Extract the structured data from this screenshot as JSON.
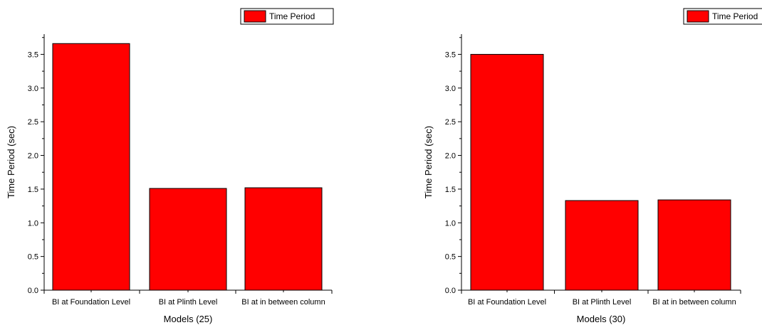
{
  "chart_data": [
    {
      "type": "bar",
      "categories": [
        "BI at Foundation Level",
        "BI at Plinth Level",
        "BI at in between column"
      ],
      "series": [
        {
          "name": "Time Period",
          "values": [
            3.66,
            1.51,
            1.52
          ]
        }
      ],
      "title": "",
      "xlabel": "Models (25)",
      "ylabel": "Time Period (sec)",
      "ylim": [
        0,
        3.8
      ],
      "yticks": [
        "0.0",
        "0.5",
        "1.0",
        "1.5",
        "2.0",
        "2.5",
        "3.0",
        "3.5"
      ],
      "legend_label": "Time Period",
      "legend_position": "top-right",
      "bar_color": "#ff0000",
      "grid": false
    },
    {
      "type": "bar",
      "categories": [
        "BI at Foundation Level",
        "BI at Plinth Level",
        "BI at in between column"
      ],
      "series": [
        {
          "name": "Time Period",
          "values": [
            3.5,
            1.33,
            1.34
          ]
        }
      ],
      "title": "",
      "xlabel": "Models (30)",
      "ylabel": "Time Period (sec)",
      "ylim": [
        0,
        3.8
      ],
      "yticks": [
        "0.0",
        "0.5",
        "1.0",
        "1.5",
        "2.0",
        "2.5",
        "3.0",
        "3.5"
      ],
      "legend_label": "Time Period",
      "legend_position": "top-right",
      "bar_color": "#ff0000",
      "grid": false
    }
  ]
}
